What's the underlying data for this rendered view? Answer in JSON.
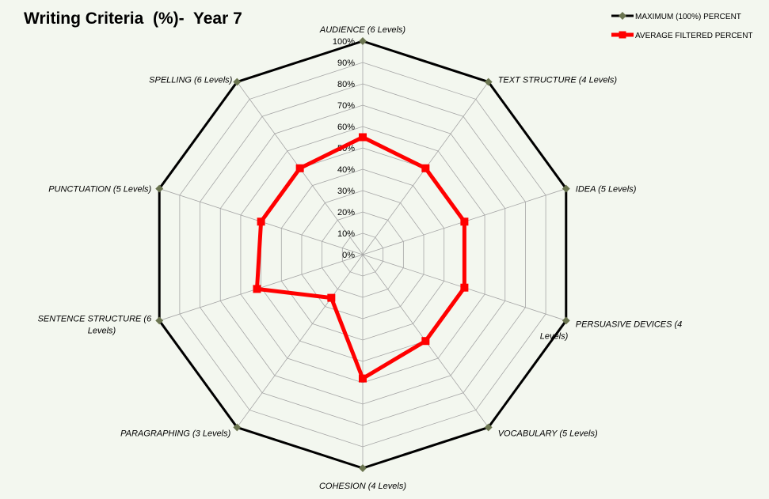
{
  "chart_data": {
    "type": "radar",
    "title": "Writing Criteria  (%)-  Year 7",
    "categories": [
      "AUDIENCE (6 Levels)",
      "TEXT STRUCTURE (4 Levels)",
      "IDEA (5 Levels)",
      "PERSUASIVE DEVICES (4 Levels)",
      "VOCABULARY (5 Levels)",
      "COHESION (4 Levels)",
      "PARAGRAPHING (3 Levels)",
      "SENTENCE STRUCTURE (6 Levels)",
      "PUNCTUATION (5 Levels)",
      "SPELLING (6 Levels)"
    ],
    "tick_labels": [
      "0%",
      "10%",
      "20%",
      "30%",
      "40%",
      "50%",
      "60%",
      "70%",
      "80%",
      "90%",
      "100%"
    ],
    "rlim": [
      0,
      100
    ],
    "grid": true,
    "legend_position": "top-right",
    "series": [
      {
        "name": "MAXIMUM (100%) PERCENT",
        "color": "#000000",
        "marker_color": "#6b7550",
        "values": [
          100,
          100,
          100,
          100,
          100,
          100,
          100,
          100,
          100,
          100
        ]
      },
      {
        "name": "AVERAGE FILTERED PERCENT",
        "color": "#ff0000",
        "marker_color": "#ff0000",
        "values": [
          55,
          50,
          50,
          50,
          50,
          58,
          25,
          52,
          50,
          50
        ]
      }
    ]
  }
}
